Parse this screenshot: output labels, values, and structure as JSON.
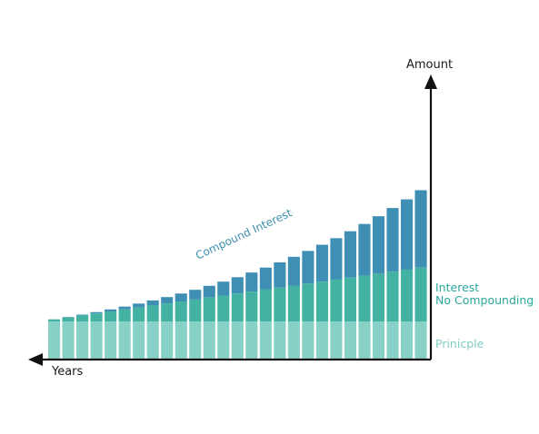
{
  "labels": {
    "y_axis": "Amount",
    "x_axis": "Years",
    "compound": "Compound Interest",
    "interest_line1": "Interest",
    "interest_line2": "No Compounding",
    "principle": "Prinicple"
  },
  "chart_data": {
    "type": "bar",
    "stacked": true,
    "bar_count": 27,
    "principal": 1.0,
    "simple_rate": 0.0535,
    "compound_rate": 0.0575,
    "series": [
      {
        "name": "Prinicple",
        "color": "#88d1c6"
      },
      {
        "name": "Interest No Compounding",
        "color": "#44b2a3"
      },
      {
        "name": "Compound Interest",
        "color": "#3f8fb4"
      }
    ]
  },
  "colors": {
    "axis": "#111111",
    "principal": "#88d1c6",
    "simple": "#44b2a3",
    "compound": "#3f8fb4",
    "bar_gap": "#ffffff"
  }
}
